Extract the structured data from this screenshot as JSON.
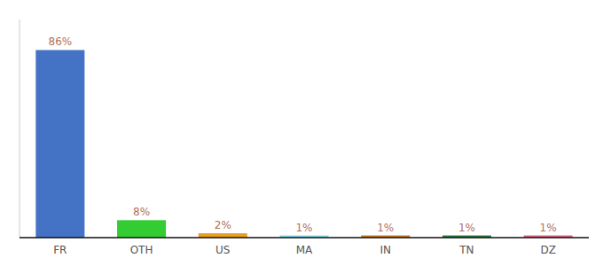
{
  "chart_data": {
    "type": "bar",
    "categories": [
      "FR",
      "OTH",
      "US",
      "MA",
      "IN",
      "TN",
      "DZ"
    ],
    "values": [
      86,
      8,
      2,
      1,
      1,
      1,
      1
    ],
    "value_labels": [
      "86%",
      "8%",
      "2%",
      "1%",
      "1%",
      "1%",
      "1%"
    ],
    "colors": [
      "#4472c4",
      "#33cc33",
      "#e8a020",
      "#80d8e8",
      "#c87820",
      "#2d7a40",
      "#e06080"
    ],
    "ylim": [
      0,
      100
    ],
    "data_labels": true,
    "tick_labels": "x",
    "grid": false
  }
}
